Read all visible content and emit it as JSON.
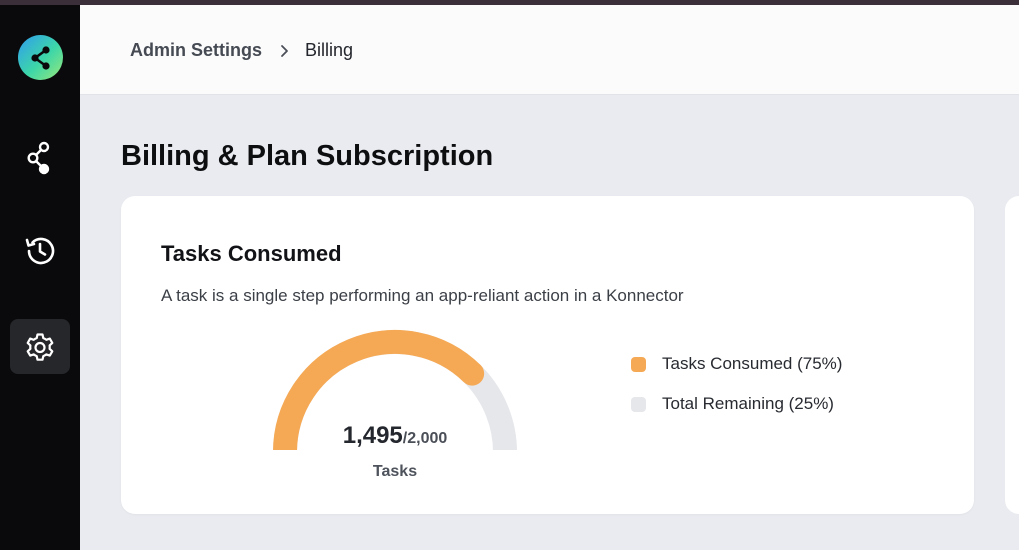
{
  "breadcrumb": {
    "parent": "Admin Settings",
    "current": "Billing"
  },
  "page": {
    "title": "Billing & Plan Subscription"
  },
  "sidebar": {
    "items": [
      {
        "icon": "share-icon",
        "active": false
      },
      {
        "icon": "history-icon",
        "active": false
      },
      {
        "icon": "gear-icon",
        "active": true
      }
    ]
  },
  "tasks_card": {
    "title": "Tasks Consumed",
    "description": "A task is a single step performing an app-reliant action in a Konnector",
    "consumed_display": "1,495",
    "total_display": "/2,000",
    "unit": "Tasks",
    "consumed": 1495,
    "total": 2000,
    "legend": [
      {
        "label": "Tasks Consumed (75%)",
        "color": "#f5a955",
        "percent": 75
      },
      {
        "label": "Total Remaining (25%)",
        "color": "#e6e7eb",
        "percent": 25
      }
    ]
  },
  "colors": {
    "accent": "#f5a955",
    "remaining": "#e6e7eb",
    "sidebar": "#0a0a0c"
  }
}
